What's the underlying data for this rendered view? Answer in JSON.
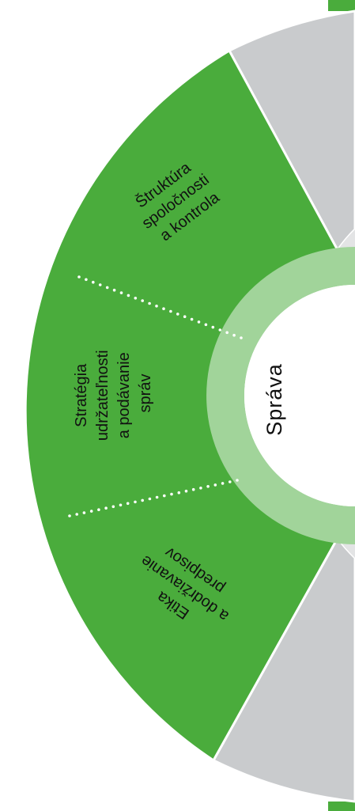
{
  "hub_label": "Správa",
  "segments": [
    {
      "lines": [
        "Štruktúra",
        "spoločnosti",
        "a kontrola"
      ]
    },
    {
      "lines": [
        "Stratégia",
        "udržateľnosti",
        "a podávanie",
        "správ"
      ]
    },
    {
      "lines": [
        "Etika",
        "a dodržiavanie",
        "predpisov"
      ]
    }
  ],
  "colors": {
    "segment_green": "#4aac3c",
    "hub_ring": "#a1d49a",
    "gray_section": "#c9cbcd",
    "divider_dots": "#ffffff",
    "text": "#111111"
  }
}
